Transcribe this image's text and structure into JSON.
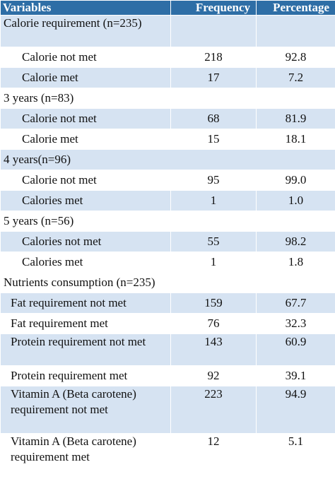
{
  "table": {
    "headers": [
      "Variables",
      "Frequency",
      "Percentage"
    ],
    "rows": [
      {
        "label": "Calorie requirement (n=235)",
        "frequency": "",
        "percentage": ""
      },
      {
        "label": "Calorie not met",
        "frequency": "218",
        "percentage": "92.8"
      },
      {
        "label": "Calorie met",
        "frequency": "17",
        "percentage": "7.2"
      },
      {
        "label": "3 years (n=83)",
        "frequency": "",
        "percentage": ""
      },
      {
        "label": "Calorie not met",
        "frequency": "68",
        "percentage": "81.9"
      },
      {
        "label": "Calorie met",
        "frequency": "15",
        "percentage": "18.1"
      },
      {
        "label": "4 years(n=96)",
        "frequency": "",
        "percentage": ""
      },
      {
        "label": "Calorie not met",
        "frequency": "95",
        "percentage": "99.0"
      },
      {
        "label": "Calories met",
        "frequency": "1",
        "percentage": "1.0"
      },
      {
        "label": "5 years (n=56)",
        "frequency": "",
        "percentage": ""
      },
      {
        "label": "Calories not met",
        "frequency": "55",
        "percentage": "98.2"
      },
      {
        "label": "Calories met",
        "frequency": "1",
        "percentage": "1.8"
      },
      {
        "label": "Nutrients consumption (n=235)",
        "frequency": "",
        "percentage": ""
      },
      {
        "label": "Fat requirement not met",
        "frequency": "159",
        "percentage": "67.7"
      },
      {
        "label": "Fat requirement met",
        "frequency": "76",
        "percentage": "32.3"
      },
      {
        "label": "Protein requirement not met",
        "frequency": "143",
        "percentage": "60.9"
      },
      {
        "label": "Protein requirement met",
        "frequency": "92",
        "percentage": "39.1"
      },
      {
        "label": "Vitamin A (Beta carotene)  requirement not met",
        "frequency": "223",
        "percentage": "94.9"
      },
      {
        "label": "Vitamin A (Beta carotene) requirement met",
        "frequency": "12",
        "percentage": "5.1"
      }
    ]
  }
}
